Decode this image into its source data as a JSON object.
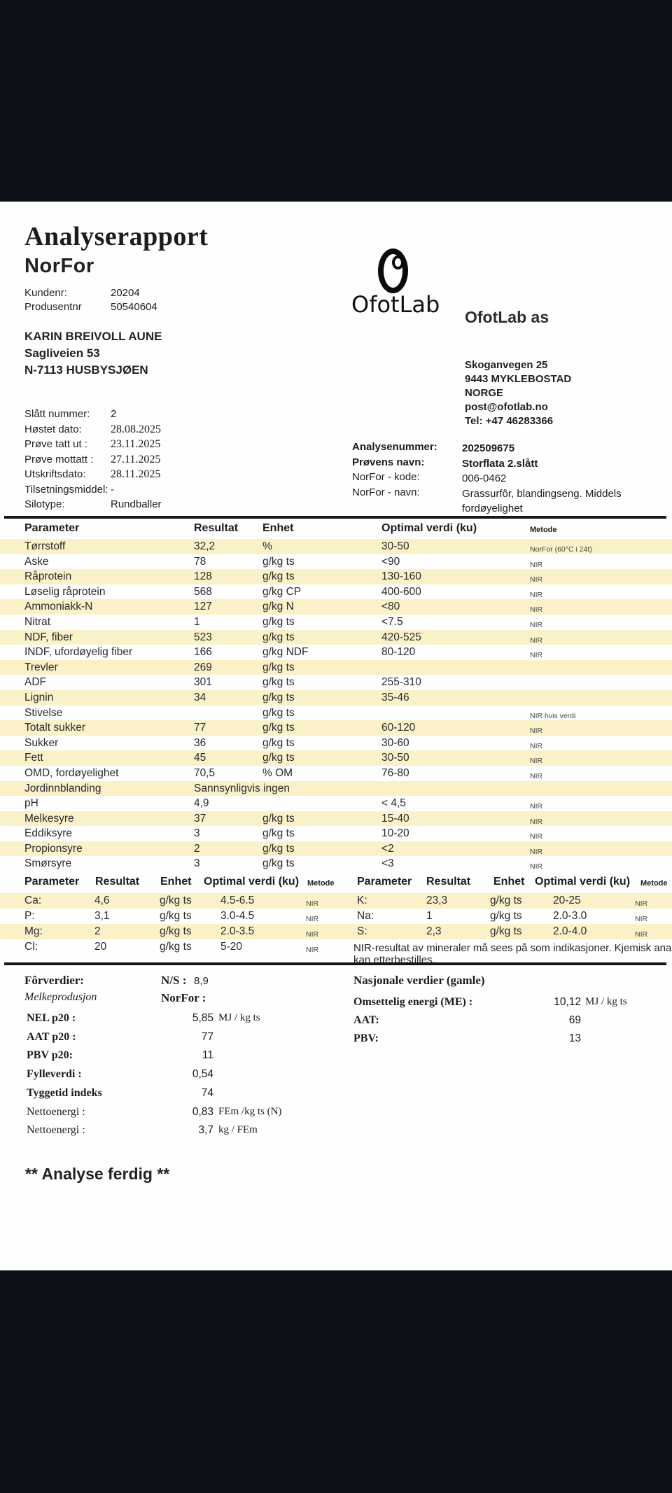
{
  "report": {
    "title": "Analyserapport",
    "subtitle": "NorFor",
    "customer_fields": [
      {
        "label": "Kundenr:",
        "value": "20204"
      },
      {
        "label": "Produsentnr",
        "value": "50540604"
      }
    ],
    "recipient_lines": [
      "KARIN BREIVOLL AUNE",
      "Sagliveien 53",
      "N-7113 HUSBYSJØEN"
    ],
    "lab": {
      "logo_text": "OfotLab",
      "name": "OfotLab as",
      "address_lines": [
        "Skoganvegen 25",
        "9443 MYKLEBOSTAD",
        "NORGE",
        "post@ofotlab.no",
        "Tel: +47 46283366"
      ]
    },
    "sample_fields_left": [
      {
        "label": "Slått nummer:",
        "value": "2",
        "serif": false
      },
      {
        "label": "Høstet dato:",
        "value": "28.08.2025",
        "serif": true
      },
      {
        "label": "Prøve tatt ut :",
        "value": "23.11.2025",
        "serif": true
      },
      {
        "label": "Prøve mottatt :",
        "value": "27.11.2025",
        "serif": true
      },
      {
        "label": "Utskriftsdato:",
        "value": "28.11.2025",
        "serif": true
      },
      {
        "label": "Tilsetningsmiddel:",
        "value": "-",
        "serif": false
      },
      {
        "label": "Silotype:",
        "value": "Rundballer",
        "serif": false
      }
    ],
    "sample_fields_right": [
      {
        "label": "Analysenummer:",
        "value": "202509675",
        "bold": true
      },
      {
        "label": "Prøvens navn:",
        "value": "Storflata 2.slått",
        "bold": true
      },
      {
        "label": "NorFor - kode:",
        "value": "006-0462",
        "bold": false
      },
      {
        "label": "NorFor - navn:",
        "value": "Grassurfôr, blandingseng. Middels fordøyelighet",
        "bold": false
      }
    ],
    "main_table": {
      "headers": [
        "Parameter",
        "Resultat",
        "Enhet",
        "Optimal verdi (ku)",
        "Metode"
      ],
      "rows": [
        [
          "Tørrstoff",
          "32,2",
          "%",
          "30-50",
          "NorFor (60°C i 24t)"
        ],
        [
          "Aske",
          "78",
          "g/kg ts",
          "<90",
          "NIR"
        ],
        [
          "Råprotein",
          "128",
          "g/kg ts",
          "130-160",
          "NIR"
        ],
        [
          "Løselig råprotein",
          "568",
          "g/kg CP",
          "400-600",
          "NIR"
        ],
        [
          "Ammoniakk-N",
          "127",
          "g/kg N",
          "<80",
          "NIR"
        ],
        [
          "Nitrat",
          "1",
          "g/kg ts",
          "<7.5",
          "NIR"
        ],
        [
          "NDF, fiber",
          "523",
          "g/kg ts",
          "420-525",
          "NIR"
        ],
        [
          "INDF, ufordøyelig fiber",
          "166",
          "g/kg NDF",
          "80-120",
          "NIR"
        ],
        [
          "Trevler",
          "269",
          "g/kg ts",
          "",
          ""
        ],
        [
          "ADF",
          "301",
          "g/kg ts",
          "255-310",
          ""
        ],
        [
          "Lignin",
          "34",
          "g/kg ts",
          "35-46",
          ""
        ],
        [
          "Stivelse",
          "",
          "g/kg ts",
          "",
          "NIR hvis verdi"
        ],
        [
          "Totalt sukker",
          "77",
          "g/kg ts",
          "60-120",
          "NIR"
        ],
        [
          "Sukker",
          "36",
          "g/kg ts",
          "30-60",
          "NIR"
        ],
        [
          "Fett",
          "45",
          "g/kg ts",
          "30-50",
          "NIR"
        ],
        [
          "OMD, fordøyelighet",
          "70,5",
          "% OM",
          "76-80",
          "NIR"
        ],
        [
          "Jordinnblanding",
          "Sannsynligvis ingen",
          "",
          "",
          ""
        ],
        [
          "pH",
          "4,9",
          "",
          "< 4,5",
          "NIR"
        ],
        [
          "Melkesyre",
          "37",
          "g/kg ts",
          "15-40",
          "NIR"
        ],
        [
          "Eddiksyre",
          "3",
          "g/kg ts",
          "10-20",
          "NIR"
        ],
        [
          "Propionsyre",
          "2",
          "g/kg ts",
          "<2",
          "NIR"
        ],
        [
          "Smørsyre",
          "3",
          "g/kg ts",
          "<3",
          "NIR"
        ]
      ]
    },
    "mineral_table_left": {
      "rows": [
        [
          "Ca:",
          "4,6",
          "g/kg ts",
          "4.5-6.5",
          "NIR"
        ],
        [
          "P:",
          "3,1",
          "g/kg ts",
          "3.0-4.5",
          "NIR"
        ],
        [
          "Mg:",
          "2",
          "g/kg ts",
          "2.0-3.5",
          "NIR"
        ],
        [
          "Cl:",
          "20",
          "g/kg ts",
          "5-20",
          "NIR"
        ]
      ]
    },
    "mineral_table_right": {
      "rows": [
        [
          "K:",
          "23,3",
          "g/kg ts",
          "20-25",
          "NIR"
        ],
        [
          "Na:",
          "1",
          "g/kg ts",
          "2.0-3.0",
          "NIR"
        ],
        [
          "S:",
          "2,3",
          "g/kg ts",
          "2.0-4.0",
          "NIR"
        ]
      ],
      "note_line_1": "NIR-resultat av mineraler må sees på som indikasjoner. Kjemisk analyse",
      "note_line_2": "kan etterbestilles."
    },
    "feed_values": {
      "heading": "Fôrverdier:",
      "ns_label": "N/S :",
      "ns_value": "8,9",
      "sub_heading": "Melkeprodusjon",
      "norfor_label": "NorFor :",
      "rows": [
        {
          "label": "NEL p20 :",
          "value": "5,85",
          "unit": "MJ / kg ts",
          "bold": true
        },
        {
          "label": "AAT p20 :",
          "value": "77",
          "unit": "",
          "bold": true
        },
        {
          "label": "PBV p20:",
          "value": "11",
          "unit": "",
          "bold": true
        },
        {
          "label": "Fylleverdi :",
          "value": "0,54",
          "unit": "",
          "bold": true
        },
        {
          "label": "Tyggetid indeks",
          "value": "74",
          "unit": "",
          "bold": true
        },
        {
          "label": "Nettoenergi :",
          "value": "0,83",
          "unit": "FEm /kg ts (N)",
          "bold": false
        },
        {
          "label": "Nettoenergi :",
          "value": "3,7",
          "unit": "kg / FEm",
          "bold": false
        }
      ]
    },
    "national_values": {
      "heading": "Nasjonale verdier (gamle)",
      "rows": [
        {
          "label": "Omsettelig energi (ME) :",
          "value": "10,12",
          "unit": "MJ / kg ts"
        },
        {
          "label": "AAT:",
          "value": "69",
          "unit": ""
        },
        {
          "label": "PBV:",
          "value": "13",
          "unit": ""
        }
      ]
    },
    "footer_note": "** Analyse ferdig **"
  },
  "colors": {
    "band_background": "#0d1117",
    "row_stripe": "#faf1c8",
    "text": "#1c1c1e"
  }
}
